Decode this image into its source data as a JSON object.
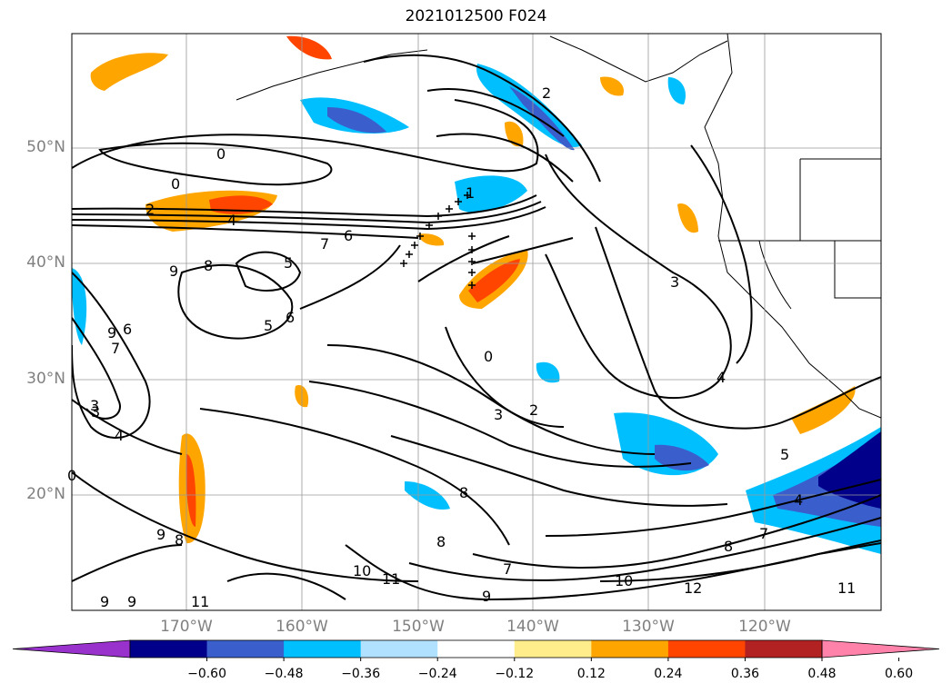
{
  "title": "2021012500 F024",
  "lat_labels": [
    "50°N",
    "40°N",
    "30°N",
    "20°N"
  ],
  "lon_labels": [
    "170°W",
    "160°W",
    "150°W",
    "140°W",
    "130°W",
    "120°W"
  ],
  "colorbar": {
    "extend": "both",
    "colors": [
      "#9932CC",
      "#00008B",
      "#3A5FCD",
      "#00BFFF",
      "#B0E2FF",
      "#FFFFFF",
      "#FFEC8B",
      "#FFA500",
      "#FF4500",
      "#B22222",
      "#FF82AB"
    ],
    "tick_labels": [
      "−0.60",
      "−0.48",
      "−0.36",
      "−0.24",
      "−0.12",
      "0.12",
      "0.24",
      "0.36",
      "0.48",
      "0.60"
    ]
  },
  "contour_labels": [
    "0",
    "0",
    "2",
    "4",
    "7",
    "6",
    "9",
    "8",
    "5",
    "5",
    "6",
    "3",
    "9",
    "7",
    "6",
    "8",
    "9",
    "4",
    "3",
    "0",
    "2",
    "3",
    "3",
    "4",
    "5",
    "4",
    "7",
    "8",
    "12",
    "10",
    "11",
    "10",
    "11",
    "9",
    "7",
    "8",
    "8",
    "9",
    "9",
    "11",
    "0",
    "1",
    "2"
  ]
}
